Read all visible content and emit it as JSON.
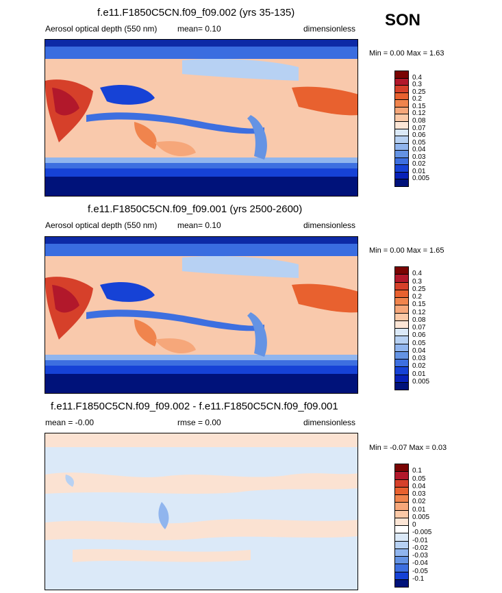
{
  "season": "SON",
  "panels": [
    {
      "title": "f.e11.F1850C5CN.f09_f09.002 (yrs 35-135)",
      "variable": "Aerosol optical depth (550 nm)",
      "mean_text": "mean=  0.10",
      "rmse_text": "",
      "units": "dimensionless",
      "minmax_text": "Min =  0.00 Max =  1.63",
      "min": 0.0,
      "max": 1.63,
      "colorbar": {
        "labels": [
          "0.4",
          "0.3",
          "0.25",
          "0.2",
          "0.15",
          "0.12",
          "0.08",
          "0.07",
          "0.06",
          "0.05",
          "0.04",
          "0.03",
          "0.02",
          "0.01",
          "0.005"
        ],
        "colors": [
          "#7a0403",
          "#b2182b",
          "#d6402a",
          "#e8612f",
          "#f0844d",
          "#f6a77a",
          "#fbc9a7",
          "#fde6d6",
          "#dbe9f8",
          "#b7d1f3",
          "#90b5ee",
          "#6493e4",
          "#3d6fe0",
          "#1642d6",
          "#0721b8",
          "#00127a"
        ]
      }
    },
    {
      "title": "f.e11.F1850C5CN.f09_f09.001 (yrs 2500-2600)",
      "variable": "Aerosol optical depth (550 nm)",
      "mean_text": "mean=  0.10",
      "rmse_text": "",
      "units": "dimensionless",
      "minmax_text": "Min =  0.00 Max =  1.65",
      "min": 0.0,
      "max": 1.65,
      "colorbar": {
        "labels": [
          "0.4",
          "0.3",
          "0.25",
          "0.2",
          "0.15",
          "0.12",
          "0.08",
          "0.07",
          "0.06",
          "0.05",
          "0.04",
          "0.03",
          "0.02",
          "0.01",
          "0.005"
        ],
        "colors": [
          "#7a0403",
          "#b2182b",
          "#d6402a",
          "#e8612f",
          "#f0844d",
          "#f6a77a",
          "#fbc9a7",
          "#fde6d6",
          "#dbe9f8",
          "#b7d1f3",
          "#90b5ee",
          "#6493e4",
          "#3d6fe0",
          "#1642d6",
          "#0721b8",
          "#00127a"
        ]
      }
    },
    {
      "title": "f.e11.F1850C5CN.f09_f09.002 - f.e11.F1850C5CN.f09_f09.001",
      "variable": "",
      "mean_text": "mean = -0.00",
      "rmse_text": "rmse =  0.00",
      "units": "dimensionless",
      "minmax_text": "Min = -0.07 Max =  0.03",
      "min": -0.07,
      "max": 0.03,
      "colorbar": {
        "labels": [
          "0.1",
          "0.05",
          "0.04",
          "0.03",
          "0.02",
          "0.01",
          "0.005",
          "0",
          "-0.005",
          "-0.01",
          "-0.02",
          "-0.03",
          "-0.04",
          "-0.05",
          "-0.1"
        ],
        "colors": [
          "#7a0403",
          "#b2182b",
          "#d6402a",
          "#e8612f",
          "#f0844d",
          "#f6a77a",
          "#fbc9a7",
          "#fde6d6",
          "#ffffff",
          "#dbe9f8",
          "#b7d1f3",
          "#90b5ee",
          "#6493e4",
          "#3d6fe0",
          "#1642d6",
          "#00127a"
        ]
      }
    }
  ]
}
